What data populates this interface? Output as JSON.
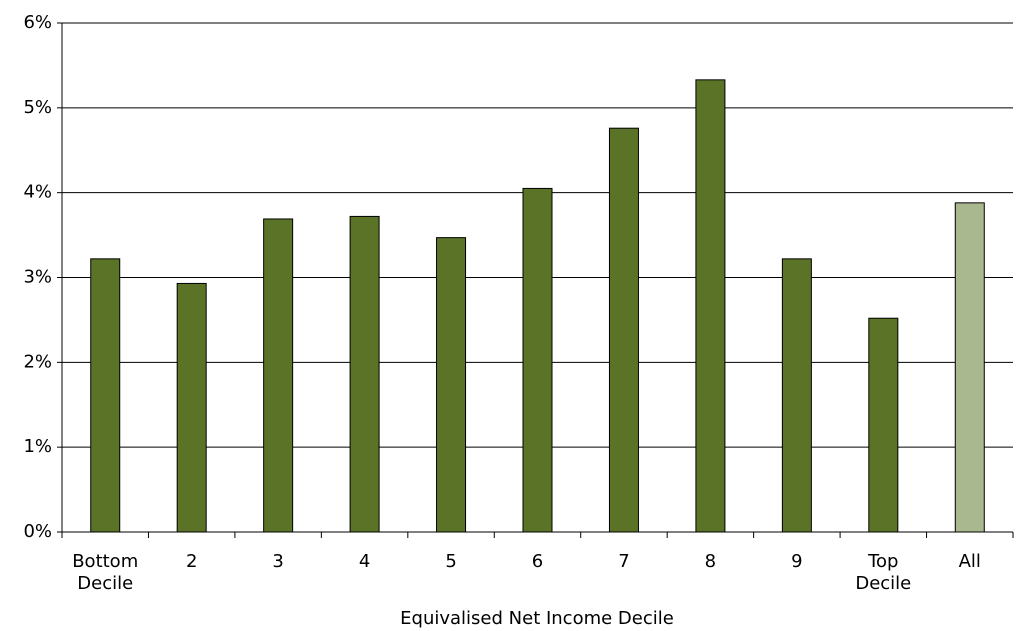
{
  "chart_data": {
    "type": "bar",
    "x_label": "Equivalised Net Income Decile",
    "categories": [
      "Bottom Decile",
      "2",
      "3",
      "4",
      "5",
      "6",
      "7",
      "8",
      "9",
      "Top Decile",
      "All"
    ],
    "values": [
      3.22,
      2.93,
      3.69,
      3.72,
      3.47,
      4.05,
      4.76,
      5.33,
      3.22,
      2.52,
      3.88
    ],
    "colors": [
      "#5a7327",
      "#5a7327",
      "#5a7327",
      "#5a7327",
      "#5a7327",
      "#5a7327",
      "#5a7327",
      "#5a7327",
      "#5a7327",
      "#5a7327",
      "#aab88f"
    ],
    "ylim": [
      0,
      6
    ],
    "yticks": [
      {
        "value": 0,
        "label": "0%"
      },
      {
        "value": 1,
        "label": "1%"
      },
      {
        "value": 2,
        "label": "2%"
      },
      {
        "value": 3,
        "label": "3%"
      },
      {
        "value": 4,
        "label": "4%"
      },
      {
        "value": 5,
        "label": "5%"
      },
      {
        "value": 6,
        "label": "6%"
      }
    ],
    "grid": true
  }
}
